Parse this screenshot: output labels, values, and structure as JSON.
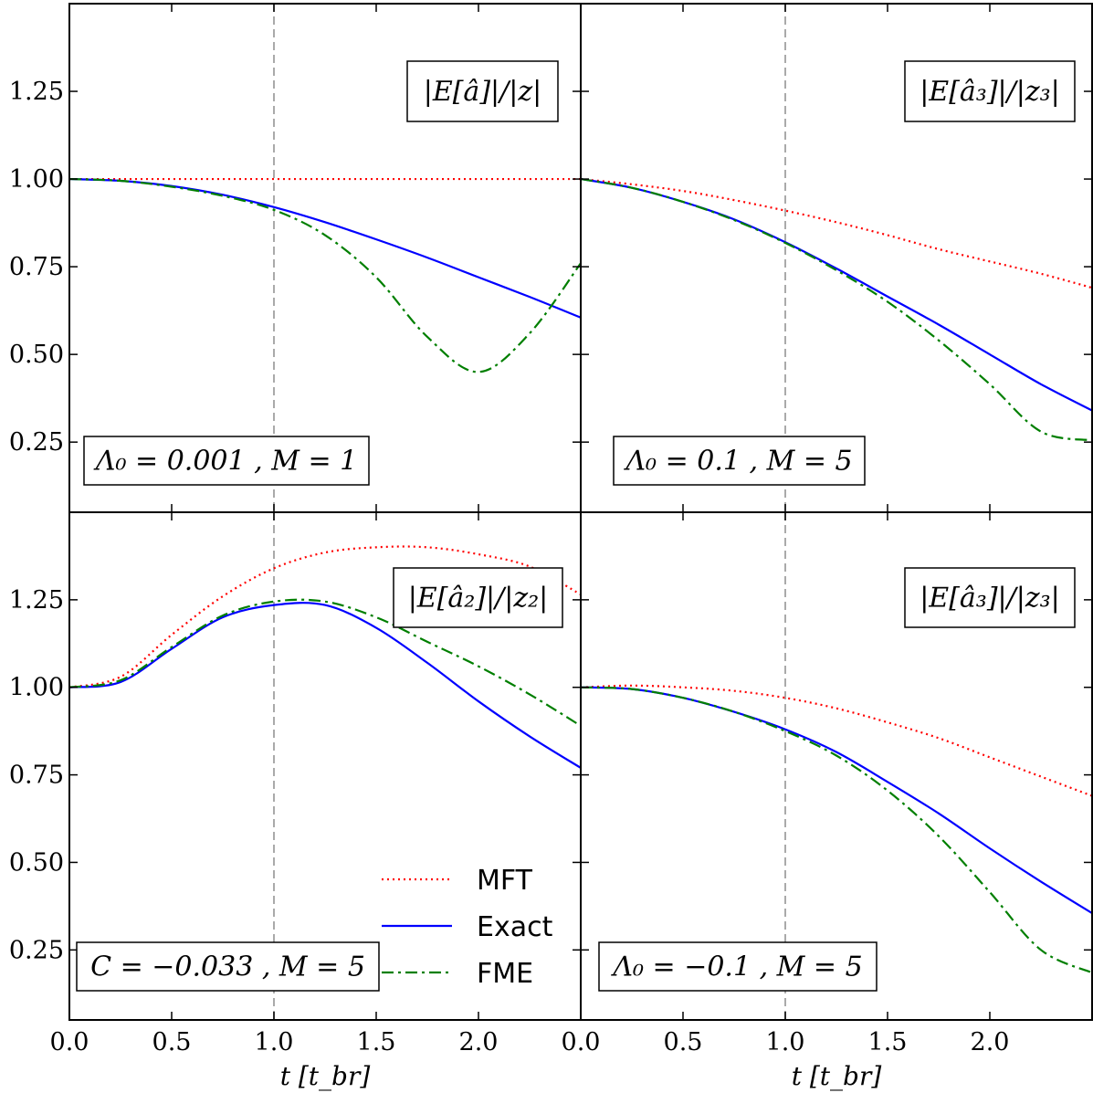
{
  "chart_data": {
    "type": "line",
    "x_axis_label": "t [t_br]",
    "xlim": [
      0,
      2.5
    ],
    "ylim": [
      0.05,
      1.5
    ],
    "x_ticks": [
      0.0,
      0.5,
      1.0,
      1.5,
      2.0
    ],
    "x_tick_labels": [
      "0.0",
      "0.5",
      "1.0",
      "1.5",
      "2.0"
    ],
    "y_ticks": [
      0.25,
      0.5,
      0.75,
      1.0,
      1.25
    ],
    "y_tick_labels": [
      "0.25",
      "0.50",
      "0.75",
      "1.00",
      "1.25"
    ],
    "reference_line_x": 1.0,
    "x": [
      0.0,
      0.25,
      0.5,
      0.75,
      1.0,
      1.25,
      1.5,
      1.75,
      2.0,
      2.25,
      2.5
    ],
    "series_styles": {
      "MFT": {
        "color": "#ff0000",
        "dash": "dotted"
      },
      "Exact": {
        "color": "#0000ff",
        "dash": "solid"
      },
      "FME": {
        "color": "#007f00",
        "dash": "dashdot"
      }
    },
    "legend": [
      "MFT",
      "Exact",
      "FME"
    ],
    "panels": [
      {
        "label": "|E[â]|/|z|",
        "param": "Λ₀ = 0.001 , M = 1",
        "series": [
          {
            "name": "MFT",
            "values": [
              1.0,
              1.0,
              1.0,
              1.0,
              1.0,
              1.0,
              1.0,
              1.0,
              1.0,
              1.0,
              1.0
            ]
          },
          {
            "name": "Exact",
            "values": [
              1.0,
              0.995,
              0.98,
              0.955,
              0.92,
              0.877,
              0.828,
              0.776,
              0.72,
              0.664,
              0.605
            ]
          },
          {
            "name": "FME",
            "values": [
              1.0,
              0.995,
              0.978,
              0.952,
              0.912,
              0.84,
              0.72,
              0.55,
              0.45,
              0.56,
              0.76
            ]
          }
        ]
      },
      {
        "label": "|E[â₃]|/|z₃|",
        "param": "Λ₀ = 0.1 , M = 5",
        "series": [
          {
            "name": "MFT",
            "values": [
              1.0,
              0.985,
              0.966,
              0.94,
              0.91,
              0.877,
              0.84,
              0.8,
              0.765,
              0.73,
              0.69
            ]
          },
          {
            "name": "Exact",
            "values": [
              1.0,
              0.975,
              0.935,
              0.885,
              0.82,
              0.745,
              0.665,
              0.585,
              0.5,
              0.415,
              0.34
            ]
          },
          {
            "name": "FME",
            "values": [
              1.0,
              0.975,
              0.935,
              0.883,
              0.818,
              0.74,
              0.65,
              0.54,
              0.415,
              0.28,
              0.255
            ]
          }
        ]
      },
      {
        "label": "|E[â₂]|/|z₂|",
        "param": "C = −0.033 , M = 5",
        "series": [
          {
            "name": "MFT",
            "values": [
              1.0,
              1.03,
              1.15,
              1.26,
              1.34,
              1.385,
              1.4,
              1.4,
              1.38,
              1.345,
              1.265
            ]
          },
          {
            "name": "Exact",
            "values": [
              1.0,
              1.015,
              1.11,
              1.2,
              1.235,
              1.235,
              1.17,
              1.07,
              0.96,
              0.86,
              0.77
            ]
          },
          {
            "name": "FME",
            "values": [
              1.0,
              1.02,
              1.115,
              1.205,
              1.245,
              1.245,
              1.2,
              1.13,
              1.06,
              0.98,
              0.89
            ]
          }
        ]
      },
      {
        "label": "|E[â₃]|/|z₃|",
        "param": "Λ₀ = −0.1 , M = 5",
        "series": [
          {
            "name": "MFT",
            "values": [
              1.0,
              1.005,
              1.0,
              0.99,
              0.97,
              0.94,
              0.9,
              0.855,
              0.8,
              0.745,
              0.69
            ]
          },
          {
            "name": "Exact",
            "values": [
              1.0,
              0.995,
              0.97,
              0.93,
              0.88,
              0.815,
              0.73,
              0.64,
              0.54,
              0.445,
              0.355
            ]
          },
          {
            "name": "FME",
            "values": [
              1.0,
              0.995,
              0.97,
              0.93,
              0.875,
              0.805,
              0.705,
              0.575,
              0.415,
              0.25,
              0.185
            ]
          }
        ]
      }
    ]
  }
}
